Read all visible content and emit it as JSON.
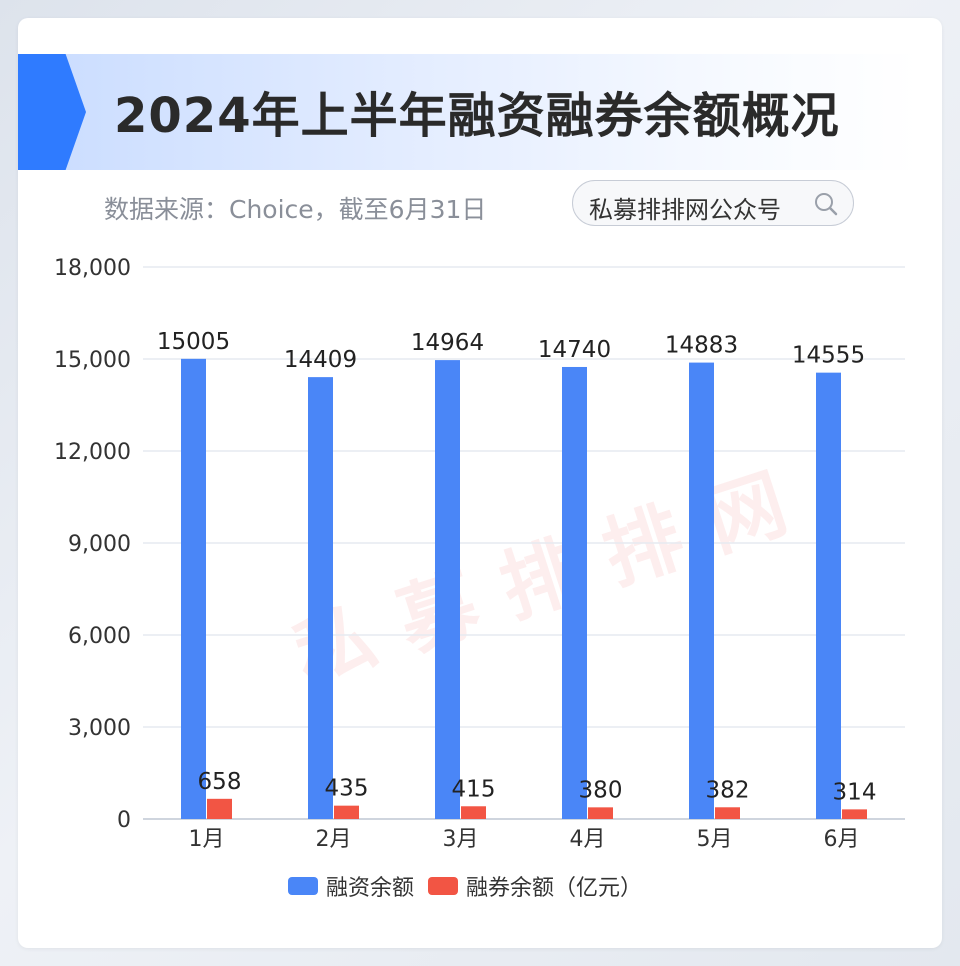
{
  "header": {
    "title": "2024年上半年融资融券余额概况",
    "source": "数据来源：Choice，截至6月31日",
    "search_label": "私募排排网公众号",
    "search_icon": "search-icon"
  },
  "watermark": "私募排排网",
  "colors": {
    "accent": "#2f7bff",
    "series_financing": "#4a86f7",
    "series_lending": "#f25544",
    "grid": "#e6eaf0",
    "axis": "#cfd5de"
  },
  "chart_data": {
    "type": "bar",
    "categories": [
      "1月",
      "2月",
      "3月",
      "4月",
      "5月",
      "6月"
    ],
    "series": [
      {
        "name": "融资余额",
        "values": [
          15005,
          14409,
          14964,
          14740,
          14883,
          14555
        ]
      },
      {
        "name": "融券余额（亿元）",
        "values": [
          658,
          435,
          415,
          380,
          382,
          314
        ]
      }
    ],
    "y_ticks": [
      "18,000",
      "15,000",
      "12,000",
      "9,000",
      "6,000",
      "3,000",
      "0"
    ],
    "ylim": [
      0,
      18000
    ],
    "grid": true,
    "legend_position": "bottom"
  }
}
